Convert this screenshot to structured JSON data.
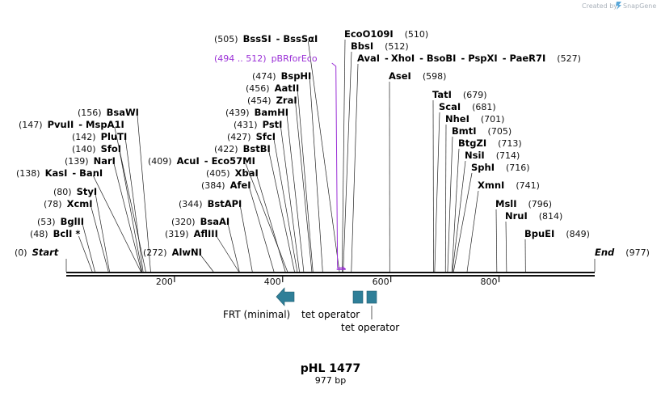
{
  "credit": {
    "prefix": "Created by",
    "brand": "SnapGene"
  },
  "plasmid": {
    "name": "pHL 1477",
    "size_label": "977 bp",
    "length": 977
  },
  "ruler": {
    "ticks": [
      200,
      400,
      600,
      800
    ]
  },
  "primer": {
    "range_label": "(494 .. 512)",
    "name": "pBRforEco",
    "start": 494,
    "end": 512,
    "color": "#9a2fd6"
  },
  "sites": [
    {
      "pos_label": "(0)",
      "name": "Start",
      "italic": true,
      "pos": 0
    },
    {
      "pos_label": "(48)",
      "name": "BclI *",
      "pos": 48
    },
    {
      "pos_label": "(53)",
      "name": "BglII",
      "pos": 53
    },
    {
      "pos_label": "(78)",
      "name": "XcmI",
      "pos": 78
    },
    {
      "pos_label": "(80)",
      "name": "StyI",
      "pos": 80
    },
    {
      "pos_label": "(138)",
      "name": "KasI",
      "name2": "BanI",
      "pos": 138
    },
    {
      "pos_label": "(139)",
      "name": "NarI",
      "pos": 139
    },
    {
      "pos_label": "(140)",
      "name": "SfoI",
      "pos": 140
    },
    {
      "pos_label": "(142)",
      "name": "PluTI",
      "pos": 142
    },
    {
      "pos_label": "(147)",
      "name": "PvuII",
      "name2": "MspA1I",
      "pos": 147
    },
    {
      "pos_label": "(156)",
      "name": "BsaWI",
      "pos": 156
    },
    {
      "pos_label": "(272)",
      "name": "AlwNI",
      "pos": 272
    },
    {
      "pos_label": "(319)",
      "name": "AflIII",
      "pos": 319
    },
    {
      "pos_label": "(320)",
      "name": "BsaAI",
      "pos": 320
    },
    {
      "pos_label": "(344)",
      "name": "BstAPI",
      "pos": 344
    },
    {
      "pos_label": "(384)",
      "name": "AfeI",
      "pos": 384
    },
    {
      "pos_label": "(405)",
      "name": "XbaI",
      "pos": 405
    },
    {
      "pos_label": "(409)",
      "name": "AcuI",
      "name2": "Eco57MI",
      "pos": 409
    },
    {
      "pos_label": "(422)",
      "name": "BstBI",
      "pos": 422
    },
    {
      "pos_label": "(427)",
      "name": "SfcI",
      "pos": 427
    },
    {
      "pos_label": "(431)",
      "name": "PstI",
      "pos": 431
    },
    {
      "pos_label": "(439)",
      "name": "BamHI",
      "pos": 439
    },
    {
      "pos_label": "(454)",
      "name": "ZraI",
      "pos": 454
    },
    {
      "pos_label": "(456)",
      "name": "AatII",
      "pos": 456
    },
    {
      "pos_label": "(474)",
      "name": "BspHI",
      "pos": 474
    },
    {
      "pos_label": "(505)",
      "name": "BssSI",
      "name2": "BssSαI",
      "pos": 505
    },
    {
      "pos_label": "(510)",
      "name": "EcoO109I",
      "pos": 510
    },
    {
      "pos_label": "(512)",
      "name": "BbsI",
      "pos": 512
    },
    {
      "pos_label": "(527)",
      "name": "AvaI",
      "name2": "XhoI",
      "name3": "BsoBI",
      "name4": "PspXI",
      "name5": "PaeR7I",
      "pos": 527
    },
    {
      "pos_label": "(598)",
      "name": "AseI",
      "pos": 598
    },
    {
      "pos_label": "(679)",
      "name": "TatI",
      "pos": 679
    },
    {
      "pos_label": "(681)",
      "name": "ScaI",
      "pos": 681
    },
    {
      "pos_label": "(701)",
      "name": "NheI",
      "pos": 701
    },
    {
      "pos_label": "(705)",
      "name": "BmtI",
      "pos": 705
    },
    {
      "pos_label": "(713)",
      "name": "BtgZI",
      "pos": 713
    },
    {
      "pos_label": "(714)",
      "name": "NsiI",
      "pos": 714
    },
    {
      "pos_label": "(716)",
      "name": "SphI",
      "pos": 716
    },
    {
      "pos_label": "(741)",
      "name": "XmnI",
      "pos": 741
    },
    {
      "pos_label": "(796)",
      "name": "MslI",
      "pos": 796
    },
    {
      "pos_label": "(814)",
      "name": "NruI",
      "pos": 814
    },
    {
      "pos_label": "(849)",
      "name": "BpuEI",
      "pos": 849
    },
    {
      "pos_label": "(977)",
      "name": "End",
      "italic": true,
      "pos": 977
    }
  ],
  "features": [
    {
      "name": "FRT (minimal)",
      "type": "arrow-left",
      "color": "#2f7f98"
    },
    {
      "name": "tet operator",
      "type": "box",
      "color": "#2f7f98"
    },
    {
      "name": "tet operator",
      "type": "box",
      "color": "#2f7f98"
    }
  ]
}
